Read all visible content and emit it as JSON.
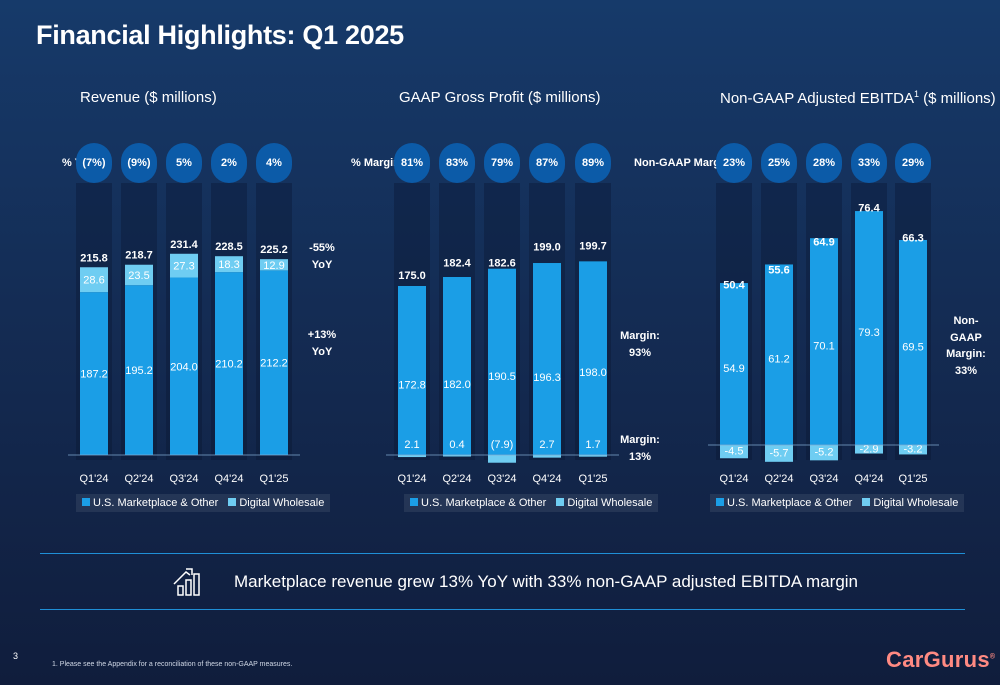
{
  "title": "Financial Highlights: Q1 2025",
  "colors": {
    "us_marketplace": "#1b9ee6",
    "digital_wholesale": "#6fcdf2",
    "pill": "#0c5ba8",
    "rule": "#1f8fd6",
    "logo": "#ff8a82"
  },
  "charts": [
    {
      "title": "Revenue ($ millions)",
      "pill_label": "% YoY",
      "pills": [
        "(7%)",
        "(9%)",
        "5%",
        "2%",
        "4%"
      ],
      "side_labels": [
        {
          "text": "-55%\nYoY"
        },
        {
          "text": "+13%\nYoY"
        }
      ]
    },
    {
      "title": "GAAP Gross Profit ($ millions)",
      "pill_label": "% Margin",
      "pills": [
        "81%",
        "83%",
        "79%",
        "87%",
        "89%"
      ],
      "side_labels": [
        {
          "text": "Margin:\n93%"
        },
        {
          "text": "Margin:\n13%"
        }
      ]
    },
    {
      "title": "Non-GAAP Adjusted EBITDA",
      "title_sup": "1",
      "title_suffix": " ($ millions)",
      "pill_label": "Non-GAAP Margin",
      "pills": [
        "23%",
        "25%",
        "28%",
        "33%",
        "29%"
      ],
      "side_labels": [
        {
          "text": "Non-\nGAAP\nMargin:\n33%"
        }
      ]
    }
  ],
  "legend": {
    "us": "U.S. Marketplace & Other",
    "dw": "Digital Wholesale"
  },
  "chart_data": [
    {
      "type": "bar",
      "stacked": true,
      "title": "Revenue ($ millions)",
      "categories": [
        "Q1'24",
        "Q2'24",
        "Q3'24",
        "Q4'24",
        "Q1'25"
      ],
      "series": [
        {
          "name": "U.S. Marketplace & Other",
          "values": [
            187.2,
            195.2,
            204.0,
            210.2,
            212.2
          ],
          "labels": [
            "187.2",
            "195.2",
            "204.0",
            "210.2",
            "212.2"
          ]
        },
        {
          "name": "Digital Wholesale",
          "values": [
            28.6,
            23.5,
            27.3,
            18.3,
            12.9
          ],
          "labels": [
            "28.6",
            "23.5",
            "27.3",
            "18.3",
            "12.9"
          ]
        }
      ],
      "totals": [
        "215.8",
        "218.7",
        "231.4",
        "228.5",
        "225.2"
      ]
    },
    {
      "type": "bar",
      "stacked": true,
      "title": "GAAP Gross Profit ($ millions)",
      "categories": [
        "Q1'24",
        "Q2'24",
        "Q3'24",
        "Q4'24",
        "Q1'25"
      ],
      "series": [
        {
          "name": "U.S. Marketplace & Other",
          "values": [
            172.8,
            182.0,
            190.5,
            196.3,
            198.0
          ],
          "labels": [
            "172.8",
            "182.0",
            "190.5",
            "196.3",
            "198.0"
          ]
        },
        {
          "name": "Digital Wholesale",
          "values": [
            2.1,
            0.4,
            -7.9,
            2.7,
            1.7
          ],
          "labels": [
            "2.1",
            "0.4",
            "(7.9)",
            "2.7",
            "1.7"
          ]
        }
      ],
      "totals": [
        "175.0",
        "182.4",
        "182.6",
        "199.0",
        "199.7"
      ]
    },
    {
      "type": "bar",
      "stacked": true,
      "title": "Non-GAAP Adjusted EBITDA ($ millions)",
      "categories": [
        "Q1'24",
        "Q2'24",
        "Q3'24",
        "Q4'24",
        "Q1'25"
      ],
      "series": [
        {
          "name": "U.S. Marketplace & Other",
          "values": [
            54.9,
            61.2,
            70.1,
            79.3,
            69.5
          ],
          "labels": [
            "54.9",
            "61.2",
            "70.1",
            "79.3",
            "69.5"
          ]
        },
        {
          "name": "Digital Wholesale",
          "values": [
            -4.5,
            -5.7,
            -5.2,
            -2.9,
            -3.2
          ],
          "labels": [
            "-4.5",
            "-5.7",
            "-5.2",
            "-2.9",
            "-3.2"
          ]
        }
      ],
      "totals": [
        "50.4",
        "55.6",
        "64.9",
        "76.4",
        "66.3"
      ]
    }
  ],
  "headline": "Marketplace revenue grew 13% YoY with 33% non-GAAP adjusted EBITDA margin",
  "page_number": "3",
  "footnote": "1.   Please see the Appendix for a reconciliation of these non-GAAP measures.",
  "logo": {
    "text": "CarGurus",
    "mark": "®"
  }
}
